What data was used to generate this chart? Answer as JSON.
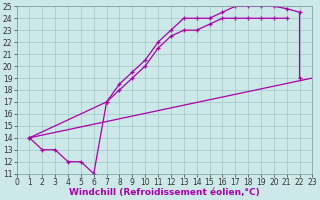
{
  "xlabel": "Windchill (Refroidissement éolien,°C)",
  "ylabel": "",
  "bg_color": "#cce8e8",
  "grid_color": "#aacccc",
  "line_color": "#aa00aa",
  "xlim": [
    0,
    23
  ],
  "ylim": [
    11,
    25
  ],
  "xticks": [
    0,
    1,
    2,
    3,
    4,
    5,
    6,
    7,
    8,
    9,
    10,
    11,
    12,
    13,
    14,
    15,
    16,
    17,
    18,
    19,
    20,
    21,
    22,
    23
  ],
  "yticks": [
    11,
    12,
    13,
    14,
    15,
    16,
    17,
    18,
    19,
    20,
    21,
    22,
    23,
    24,
    25
  ],
  "line1_x": [
    1,
    2,
    3,
    4,
    5,
    6,
    7,
    8,
    9,
    10,
    11,
    12,
    13,
    14,
    15,
    16,
    17,
    18,
    19,
    20,
    21,
    22,
    22
  ],
  "line1_y": [
    14,
    13,
    13,
    12,
    12,
    11,
    17,
    18.5,
    19.5,
    20.5,
    22,
    23,
    24,
    24,
    24,
    24.5,
    25,
    25,
    25,
    25,
    24.8,
    24.5,
    19
  ],
  "line2_x": [
    1,
    7,
    8,
    9,
    10,
    11,
    12,
    13,
    14,
    15,
    16,
    17,
    18,
    19,
    20,
    21
  ],
  "line2_y": [
    14,
    17,
    18,
    19,
    20,
    21.5,
    22.5,
    23,
    23,
    23.5,
    24,
    24,
    24,
    24,
    24,
    24
  ],
  "line3_x": [
    1,
    23
  ],
  "line3_y": [
    14,
    19
  ],
  "tick_fontsize": 5.5,
  "label_fontsize": 6.5
}
